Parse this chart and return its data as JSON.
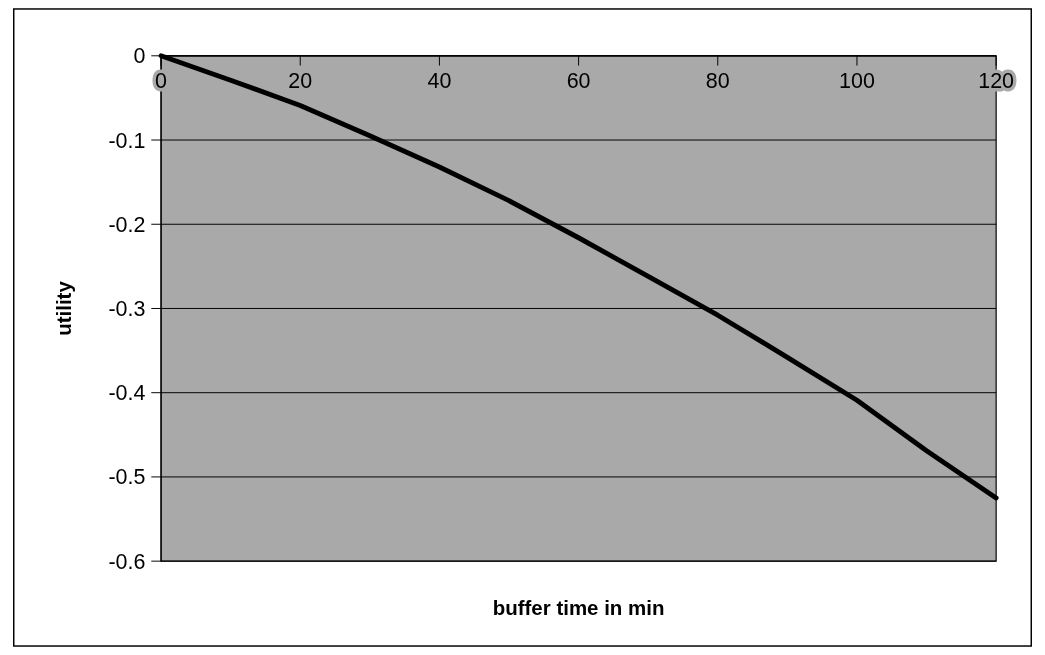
{
  "chart_data": {
    "type": "line",
    "xlabel": "buffer time in min",
    "ylabel": "utility",
    "x": [
      0,
      10,
      20,
      30,
      40,
      50,
      60,
      70,
      80,
      90,
      100,
      110,
      120
    ],
    "series": [
      {
        "color": "#000000",
        "values": [
          0,
          -0.029,
          -0.059,
          -0.095,
          -0.132,
          -0.172,
          -0.216,
          -0.262,
          -0.308,
          -0.358,
          -0.409,
          -0.469,
          -0.525
        ]
      }
    ],
    "xlim": [
      0,
      120
    ],
    "xticks": [
      0,
      20,
      40,
      60,
      80,
      100,
      120
    ],
    "ylim": [
      -0.6,
      0
    ],
    "yticks": [
      -0.6,
      -0.5,
      -0.4,
      -0.3,
      -0.2,
      -0.1,
      0
    ],
    "grid": "y",
    "marker": "none",
    "line_style": "solid"
  }
}
